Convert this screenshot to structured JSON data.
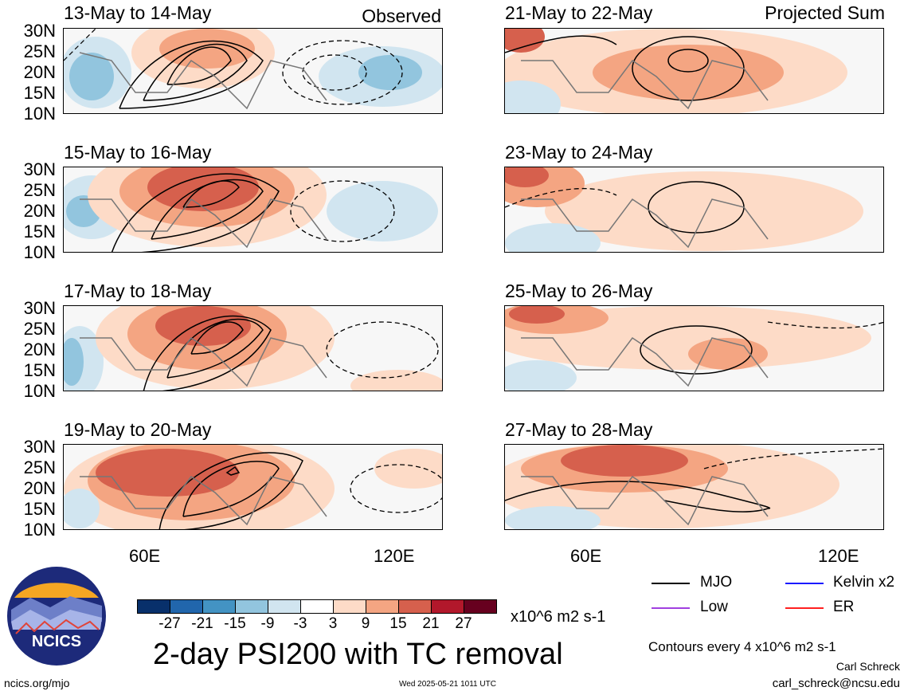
{
  "panels": [
    {
      "title": "13-May to 14-May",
      "label": "Observed"
    },
    {
      "title": "15-May to 16-May",
      "label": ""
    },
    {
      "title": "17-May to 18-May",
      "label": ""
    },
    {
      "title": "19-May to 20-May",
      "label": ""
    },
    {
      "title": "21-May to 22-May",
      "label": "Projected Sum"
    },
    {
      "title": "23-May to 24-May",
      "label": ""
    },
    {
      "title": "25-May to 26-May",
      "label": ""
    },
    {
      "title": "27-May to 28-May",
      "label": ""
    }
  ],
  "lat_labels": [
    "30N",
    "25N",
    "20N",
    "15N",
    "10N"
  ],
  "lon_labels": [
    "60E",
    "120E"
  ],
  "colorbar": {
    "colors": [
      "#08306b",
      "#2166ac",
      "#4393c3",
      "#92c5de",
      "#d1e5f0",
      "#ffffff",
      "#fddbc7",
      "#f4a582",
      "#d6604d",
      "#b2182b",
      "#67001f"
    ],
    "ticks": [
      "-27",
      "-21",
      "-15",
      "-9",
      "-3",
      "3",
      "9",
      "15",
      "21",
      "27"
    ],
    "units": "x10^6 m2 s-1"
  },
  "legend": [
    {
      "label": "MJO",
      "color": "#000000"
    },
    {
      "label": "Kelvin x2",
      "color": "#1a1aff"
    },
    {
      "label": "Low",
      "color": "#a040e0"
    },
    {
      "label": "ER",
      "color": "#ff2020"
    }
  ],
  "logo_text": "NCICS",
  "main_title": "2-day PSI200 with TC removal",
  "contours_note": "Contours every 4 x10^6 m2 s-1",
  "author": "Carl Schreck",
  "email": "carl_schreck@ncsu.edu",
  "url": "ncics.org/mjo",
  "timestamp": "Wed 2025-05-21 1011 UTC"
}
